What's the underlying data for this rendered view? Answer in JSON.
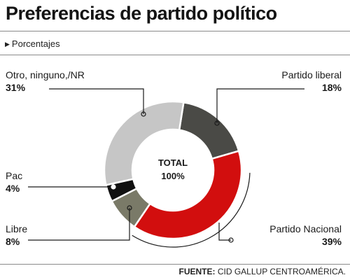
{
  "header": {
    "title": "Preferencias de partido político",
    "subtitle": "Porcentajes"
  },
  "center": {
    "line1": "TOTAL",
    "line2": "100%"
  },
  "footer": {
    "source_label": "FUENTE:",
    "source_text": "CID GALLUP CENTROAMÉRICA."
  },
  "chart_data": {
    "type": "pie",
    "donut": true,
    "labels": [
      "Partido liberal",
      "Partido Nacional",
      "Libre",
      "Pac",
      "Otro, ninguno,/NR"
    ],
    "values": [
      18,
      39,
      8,
      4,
      31
    ],
    "value_labels": [
      "18%",
      "39%",
      "8%",
      "4%",
      "31%"
    ],
    "colors": [
      "#4a4a46",
      "#d20e0e",
      "#7a7a68",
      "#111111",
      "#c6c6c6"
    ],
    "legend": "none"
  }
}
